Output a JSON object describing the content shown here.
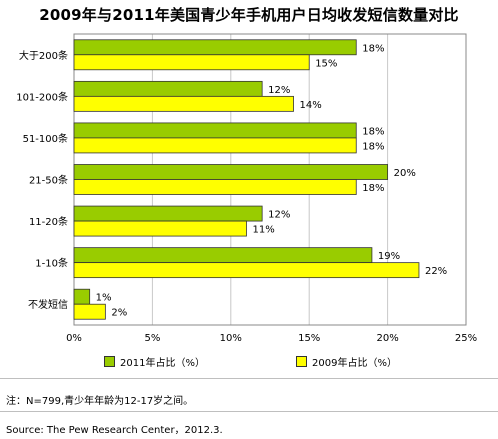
{
  "chart_data": {
    "type": "bar",
    "orientation": "horizontal",
    "title": "2009年与2011年美国青少年手机用户日均收发短信数量对比",
    "categories": [
      "大于200条",
      "101-200条",
      "51-100条",
      "21-50条",
      "11-20条",
      "1-10条",
      "不发短信"
    ],
    "series": [
      {
        "name": "2011年占比（%）",
        "values": [
          18,
          12,
          18,
          20,
          12,
          19,
          1
        ],
        "labels": [
          "18%",
          "12%",
          "18%",
          "20%",
          "12%",
          "19%",
          "1%"
        ],
        "color": "#99cc00"
      },
      {
        "name": "2009年占比（%）",
        "values": [
          15,
          14,
          18,
          18,
          11,
          22,
          2
        ],
        "labels": [
          "15%",
          "14%",
          "18%",
          "18%",
          "11%",
          "22%",
          "2%"
        ],
        "color": "#ffff00"
      }
    ],
    "xlim": [
      0,
      25
    ],
    "xticks": [
      "0%",
      "5%",
      "10%",
      "15%",
      "20%",
      "25%"
    ],
    "xlabel": "",
    "ylabel": "",
    "grid": true,
    "legend_position": "bottom"
  },
  "footer": {
    "note": "注：N=799,青少年年龄为12-17岁之间。",
    "source": "Source: The Pew Research Center，2012.3."
  }
}
